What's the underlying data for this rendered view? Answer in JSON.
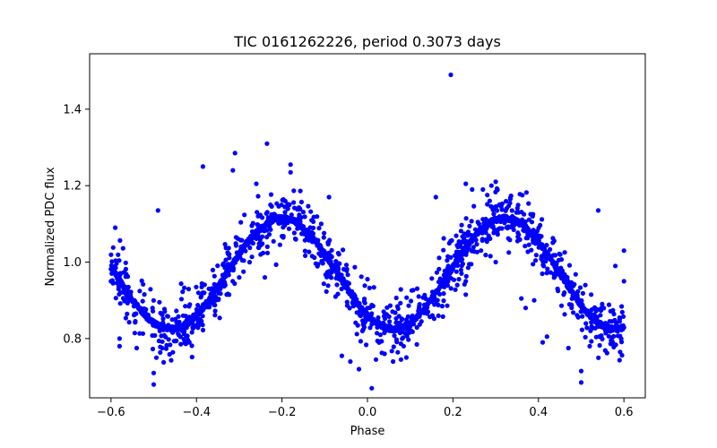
{
  "chart_data": {
    "type": "scatter",
    "title": "TIC 0161262226, period 0.3073 days",
    "xlabel": "Phase",
    "ylabel": "Normalized PDC flux",
    "xlim": [
      -0.65,
      0.65
    ],
    "ylim": [
      0.645,
      1.545
    ],
    "x_ticks": [
      -0.6,
      -0.4,
      -0.2,
      0.0,
      0.2,
      0.4,
      0.6
    ],
    "x_tick_labels": [
      "−0.6",
      "−0.4",
      "−0.2",
      "0.0",
      "0.2",
      "0.4",
      "0.6"
    ],
    "y_ticks": [
      0.8,
      1.0,
      1.2,
      1.4
    ],
    "y_tick_labels": [
      "0.8",
      "1.0",
      "1.2",
      "1.4"
    ],
    "grid": false,
    "marker_color": "#0000ff",
    "series": [
      {
        "model": {
          "x_range": [
            -0.6,
            0.6
          ],
          "mean": 0.97,
          "amplitude": 0.145,
          "cycles_per_unit_phase": 1.9231,
          "phase_offset": 0.0
        },
        "points": [
          {
            "x": 0.195,
            "y": 1.49
          },
          {
            "x": -0.235,
            "y": 1.31
          },
          {
            "x": -0.31,
            "y": 1.285
          },
          {
            "x": -0.385,
            "y": 1.25
          },
          {
            "x": -0.18,
            "y": 1.255
          },
          {
            "x": -0.18,
            "y": 1.235
          },
          {
            "x": -0.315,
            "y": 1.24
          },
          {
            "x": -0.26,
            "y": 1.205
          },
          {
            "x": -0.09,
            "y": 1.17
          },
          {
            "x": 0.3,
            "y": 1.21
          },
          {
            "x": 0.29,
            "y": 1.2
          },
          {
            "x": 0.23,
            "y": 1.205
          },
          {
            "x": 0.16,
            "y": 1.17
          },
          {
            "x": 0.245,
            "y": 1.19
          },
          {
            "x": 0.27,
            "y": 1.19
          },
          {
            "x": -0.49,
            "y": 1.135
          },
          {
            "x": 0.54,
            "y": 1.135
          },
          {
            "x": -0.5,
            "y": 0.71
          },
          {
            "x": -0.5,
            "y": 0.68
          },
          {
            "x": 0.5,
            "y": 0.715
          },
          {
            "x": 0.5,
            "y": 0.685
          },
          {
            "x": 0.01,
            "y": 0.67
          },
          {
            "x": -0.02,
            "y": 0.72
          },
          {
            "x": 0.02,
            "y": 0.745
          },
          {
            "x": -0.04,
            "y": 0.74
          },
          {
            "x": 0.06,
            "y": 0.74
          },
          {
            "x": 0.04,
            "y": 0.76
          },
          {
            "x": -0.06,
            "y": 0.755
          },
          {
            "x": -0.54,
            "y": 0.775
          },
          {
            "x": -0.58,
            "y": 0.78
          },
          {
            "x": -0.58,
            "y": 0.8
          },
          {
            "x": -0.42,
            "y": 0.79
          },
          {
            "x": -0.48,
            "y": 0.775
          },
          {
            "x": 0.41,
            "y": 0.79
          },
          {
            "x": 0.42,
            "y": 0.805
          },
          {
            "x": 0.47,
            "y": 0.775
          },
          {
            "x": 0.57,
            "y": 0.795
          },
          {
            "x": 0.52,
            "y": 0.78
          },
          {
            "x": -0.25,
            "y": 1.02
          },
          {
            "x": -0.29,
            "y": 0.975
          },
          {
            "x": -0.24,
            "y": 0.96
          },
          {
            "x": -0.3,
            "y": 0.96
          },
          {
            "x": -0.37,
            "y": 0.89
          },
          {
            "x": 0.22,
            "y": 0.97
          },
          {
            "x": 0.21,
            "y": 0.94
          },
          {
            "x": 0.18,
            "y": 0.935
          },
          {
            "x": 0.23,
            "y": 0.915
          },
          {
            "x": 0.12,
            "y": 0.91
          },
          {
            "x": 0.23,
            "y": 0.95
          },
          {
            "x": 0.3,
            "y": 1.0
          },
          {
            "x": 0.37,
            "y": 0.88
          },
          {
            "x": 0.36,
            "y": 0.905
          },
          {
            "x": 0.39,
            "y": 0.9
          },
          {
            "x": 0.6,
            "y": 0.95
          },
          {
            "x": 0.58,
            "y": 0.99
          },
          {
            "x": 0.6,
            "y": 1.03
          },
          {
            "x": -0.59,
            "y": 1.09
          },
          {
            "x": -0.6,
            "y": 0.95
          },
          {
            "x": -0.58,
            "y": 0.97
          }
        ]
      }
    ]
  }
}
